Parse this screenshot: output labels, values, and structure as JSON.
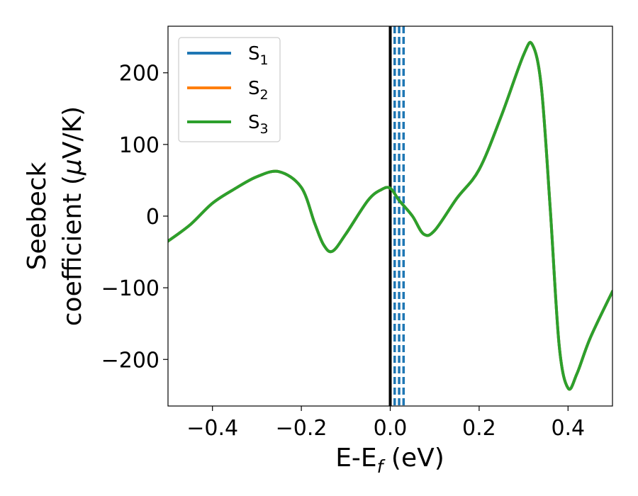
{
  "chart_data": {
    "type": "line",
    "xlabel": {
      "main": "E-E",
      "sub": "f",
      "tail": " (eV)"
    },
    "ylabel": {
      "line1": "Seebeck",
      "line2_prefix": "coefficient  (",
      "mu": "μ",
      "line2_suffix": "V/K)"
    },
    "xlim": [
      -0.5,
      0.5
    ],
    "ylim": [
      -265,
      265
    ],
    "x_ticks": [
      -0.4,
      -0.2,
      0.0,
      0.2,
      0.4
    ],
    "x_tick_labels": [
      "−0.4",
      "−0.2",
      "0.0",
      "0.2",
      "0.4"
    ],
    "y_ticks": [
      200,
      100,
      0,
      -100,
      -200
    ],
    "y_tick_labels": [
      "200",
      "100",
      "0",
      "−100",
      "−200"
    ],
    "grid": false,
    "legend_position": "top-left",
    "series": [
      {
        "name": "S",
        "sub": "1",
        "color": "#1f77b4"
      },
      {
        "name": "S",
        "sub": "2",
        "color": "#ff7f0e"
      },
      {
        "name": "S",
        "sub": "3",
        "color": "#2ca02c"
      }
    ],
    "curve": {
      "x": [
        -0.5,
        -0.45,
        -0.4,
        -0.35,
        -0.3,
        -0.25,
        -0.2,
        -0.17,
        -0.15,
        -0.13,
        -0.1,
        -0.05,
        -0.02,
        0.0,
        0.02,
        0.05,
        0.075,
        0.1,
        0.15,
        0.2,
        0.25,
        0.3,
        0.32,
        0.34,
        0.36,
        0.38,
        0.4,
        0.42,
        0.45,
        0.5
      ],
      "y": [
        -35,
        -12,
        18,
        38,
        55,
        62,
        40,
        -10,
        -40,
        -49,
        -25,
        22,
        37,
        39,
        22,
        0,
        -25,
        -20,
        25,
        65,
        140,
        225,
        239,
        180,
        10,
        -180,
        -240,
        -220,
        -170,
        -105
      ]
    },
    "vertical_lines": [
      {
        "x": 0.0,
        "style": "solid",
        "color": "#000000"
      },
      {
        "x": 0.01,
        "style": "dashed",
        "color": "#1f77b4"
      },
      {
        "x": 0.02,
        "style": "dashed",
        "color": "#1f77b4"
      },
      {
        "x": 0.03,
        "style": "dashed",
        "color": "#1f77b4"
      }
    ]
  }
}
